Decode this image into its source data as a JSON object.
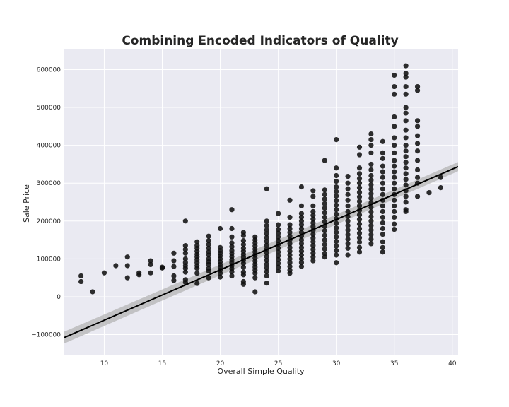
{
  "chart_data": {
    "type": "scatter",
    "title": "Combining Encoded Indicators of Quality",
    "xlabel": "Overall Simple Quality",
    "ylabel": "Sale Price",
    "xlim": [
      6.5,
      40.5
    ],
    "ylim": [
      -155000,
      655000
    ],
    "xticks": [
      10,
      15,
      20,
      25,
      30,
      35,
      40
    ],
    "yticks": [
      -100000,
      0,
      100000,
      200000,
      300000,
      400000,
      500000,
      600000
    ],
    "grid": true,
    "background": "#eaeaf2",
    "grid_color": "#ffffff",
    "point_color": "#111111",
    "line_color": "#000000",
    "ci_color": "#b0b0b0",
    "regression": {
      "intercept": -195000,
      "slope": 13300,
      "ci": 12000
    },
    "points": [
      [
        8,
        55000
      ],
      [
        8,
        40000
      ],
      [
        9,
        13000
      ],
      [
        10,
        63000
      ],
      [
        11,
        82000
      ],
      [
        12,
        105000
      ],
      [
        12,
        82000
      ],
      [
        12,
        50000
      ],
      [
        13,
        63000
      ],
      [
        13,
        58000
      ],
      [
        14,
        95000
      ],
      [
        14,
        85000
      ],
      [
        14,
        63000
      ],
      [
        15,
        78000
      ],
      [
        15,
        76000
      ],
      [
        16,
        115000
      ],
      [
        16,
        95000
      ],
      [
        16,
        80000
      ],
      [
        16,
        55000
      ],
      [
        16,
        43000
      ],
      [
        17,
        200000
      ],
      [
        17,
        135000
      ],
      [
        17,
        125000
      ],
      [
        17,
        115000
      ],
      [
        17,
        100000
      ],
      [
        17,
        90000
      ],
      [
        17,
        82000
      ],
      [
        17,
        75000
      ],
      [
        17,
        65000
      ],
      [
        17,
        45000
      ],
      [
        17,
        38000
      ],
      [
        18,
        145000
      ],
      [
        18,
        135000
      ],
      [
        18,
        128000
      ],
      [
        18,
        120000
      ],
      [
        18,
        112000
      ],
      [
        18,
        105000
      ],
      [
        18,
        98000
      ],
      [
        18,
        90000
      ],
      [
        18,
        82000
      ],
      [
        18,
        75000
      ],
      [
        18,
        62000
      ],
      [
        18,
        35000
      ],
      [
        19,
        160000
      ],
      [
        19,
        148000
      ],
      [
        19,
        138000
      ],
      [
        19,
        128000
      ],
      [
        19,
        118000
      ],
      [
        19,
        110000
      ],
      [
        19,
        100000
      ],
      [
        19,
        92000
      ],
      [
        19,
        85000
      ],
      [
        19,
        75000
      ],
      [
        19,
        68000
      ],
      [
        19,
        50000
      ],
      [
        20,
        180000
      ],
      [
        20,
        130000
      ],
      [
        20,
        122000
      ],
      [
        20,
        115000
      ],
      [
        20,
        108000
      ],
      [
        20,
        100000
      ],
      [
        20,
        92000
      ],
      [
        20,
        85000
      ],
      [
        20,
        78000
      ],
      [
        20,
        70000
      ],
      [
        20,
        62000
      ],
      [
        20,
        52000
      ],
      [
        21,
        230000
      ],
      [
        21,
        180000
      ],
      [
        21,
        158000
      ],
      [
        21,
        142000
      ],
      [
        21,
        132000
      ],
      [
        21,
        122000
      ],
      [
        21,
        114000
      ],
      [
        21,
        106000
      ],
      [
        21,
        98000
      ],
      [
        21,
        90000
      ],
      [
        21,
        82000
      ],
      [
        21,
        74000
      ],
      [
        21,
        66000
      ],
      [
        21,
        55000
      ],
      [
        22,
        170000
      ],
      [
        22,
        162000
      ],
      [
        22,
        148000
      ],
      [
        22,
        138000
      ],
      [
        22,
        128000
      ],
      [
        22,
        120000
      ],
      [
        22,
        112000
      ],
      [
        22,
        104000
      ],
      [
        22,
        96000
      ],
      [
        22,
        88000
      ],
      [
        22,
        78000
      ],
      [
        22,
        65000
      ],
      [
        22,
        58000
      ],
      [
        22,
        40000
      ],
      [
        22,
        33000
      ],
      [
        23,
        158000
      ],
      [
        23,
        150000
      ],
      [
        23,
        142000
      ],
      [
        23,
        134000
      ],
      [
        23,
        126000
      ],
      [
        23,
        118000
      ],
      [
        23,
        110000
      ],
      [
        23,
        102000
      ],
      [
        23,
        94000
      ],
      [
        23,
        86000
      ],
      [
        23,
        78000
      ],
      [
        23,
        70000
      ],
      [
        23,
        62000
      ],
      [
        23,
        50000
      ],
      [
        23,
        13000
      ],
      [
        24,
        285000
      ],
      [
        24,
        200000
      ],
      [
        24,
        188000
      ],
      [
        24,
        176000
      ],
      [
        24,
        166000
      ],
      [
        24,
        156000
      ],
      [
        24,
        146000
      ],
      [
        24,
        136000
      ],
      [
        24,
        126000
      ],
      [
        24,
        116000
      ],
      [
        24,
        106000
      ],
      [
        24,
        96000
      ],
      [
        24,
        86000
      ],
      [
        24,
        76000
      ],
      [
        24,
        66000
      ],
      [
        24,
        55000
      ],
      [
        24,
        36000
      ],
      [
        25,
        220000
      ],
      [
        25,
        190000
      ],
      [
        25,
        178000
      ],
      [
        25,
        168000
      ],
      [
        25,
        158000
      ],
      [
        25,
        148000
      ],
      [
        25,
        138000
      ],
      [
        25,
        128000
      ],
      [
        25,
        118000
      ],
      [
        25,
        108000
      ],
      [
        25,
        98000
      ],
      [
        25,
        88000
      ],
      [
        25,
        78000
      ],
      [
        25,
        68000
      ],
      [
        26,
        255000
      ],
      [
        26,
        210000
      ],
      [
        26,
        190000
      ],
      [
        26,
        180000
      ],
      [
        26,
        170000
      ],
      [
        26,
        160000
      ],
      [
        26,
        150000
      ],
      [
        26,
        140000
      ],
      [
        26,
        130000
      ],
      [
        26,
        120000
      ],
      [
        26,
        110000
      ],
      [
        26,
        100000
      ],
      [
        26,
        90000
      ],
      [
        26,
        80000
      ],
      [
        26,
        70000
      ],
      [
        26,
        62000
      ],
      [
        27,
        290000
      ],
      [
        27,
        240000
      ],
      [
        27,
        220000
      ],
      [
        27,
        210000
      ],
      [
        27,
        200000
      ],
      [
        27,
        190000
      ],
      [
        27,
        180000
      ],
      [
        27,
        170000
      ],
      [
        27,
        160000
      ],
      [
        27,
        150000
      ],
      [
        27,
        140000
      ],
      [
        27,
        130000
      ],
      [
        27,
        120000
      ],
      [
        27,
        110000
      ],
      [
        27,
        100000
      ],
      [
        27,
        90000
      ],
      [
        27,
        80000
      ],
      [
        28,
        280000
      ],
      [
        28,
        265000
      ],
      [
        28,
        240000
      ],
      [
        28,
        225000
      ],
      [
        28,
        215000
      ],
      [
        28,
        205000
      ],
      [
        28,
        195000
      ],
      [
        28,
        185000
      ],
      [
        28,
        175000
      ],
      [
        28,
        165000
      ],
      [
        28,
        155000
      ],
      [
        28,
        145000
      ],
      [
        28,
        135000
      ],
      [
        28,
        125000
      ],
      [
        28,
        115000
      ],
      [
        28,
        105000
      ],
      [
        28,
        95000
      ],
      [
        29,
        360000
      ],
      [
        29,
        282000
      ],
      [
        29,
        270000
      ],
      [
        29,
        258000
      ],
      [
        29,
        246000
      ],
      [
        29,
        234000
      ],
      [
        29,
        222000
      ],
      [
        29,
        210000
      ],
      [
        29,
        198000
      ],
      [
        29,
        186000
      ],
      [
        29,
        174000
      ],
      [
        29,
        162000
      ],
      [
        29,
        150000
      ],
      [
        29,
        138000
      ],
      [
        29,
        126000
      ],
      [
        29,
        114000
      ],
      [
        29,
        105000
      ],
      [
        30,
        415000
      ],
      [
        30,
        340000
      ],
      [
        30,
        320000
      ],
      [
        30,
        305000
      ],
      [
        30,
        290000
      ],
      [
        30,
        278000
      ],
      [
        30,
        266000
      ],
      [
        30,
        254000
      ],
      [
        30,
        242000
      ],
      [
        30,
        230000
      ],
      [
        30,
        218000
      ],
      [
        30,
        206000
      ],
      [
        30,
        194000
      ],
      [
        30,
        182000
      ],
      [
        30,
        170000
      ],
      [
        30,
        158000
      ],
      [
        30,
        146000
      ],
      [
        30,
        134000
      ],
      [
        30,
        122000
      ],
      [
        30,
        110000
      ],
      [
        30,
        90000
      ],
      [
        31,
        318000
      ],
      [
        31,
        300000
      ],
      [
        31,
        285000
      ],
      [
        31,
        270000
      ],
      [
        31,
        255000
      ],
      [
        31,
        240000
      ],
      [
        31,
        225000
      ],
      [
        31,
        212000
      ],
      [
        31,
        200000
      ],
      [
        31,
        188000
      ],
      [
        31,
        176000
      ],
      [
        31,
        164000
      ],
      [
        31,
        152000
      ],
      [
        31,
        140000
      ],
      [
        31,
        128000
      ],
      [
        31,
        110000
      ],
      [
        32,
        395000
      ],
      [
        32,
        375000
      ],
      [
        32,
        340000
      ],
      [
        32,
        325000
      ],
      [
        32,
        312000
      ],
      [
        32,
        300000
      ],
      [
        32,
        288000
      ],
      [
        32,
        276000
      ],
      [
        32,
        264000
      ],
      [
        32,
        252000
      ],
      [
        32,
        240000
      ],
      [
        32,
        228000
      ],
      [
        32,
        216000
      ],
      [
        32,
        204000
      ],
      [
        32,
        192000
      ],
      [
        32,
        180000
      ],
      [
        32,
        168000
      ],
      [
        32,
        156000
      ],
      [
        32,
        144000
      ],
      [
        32,
        130000
      ],
      [
        32,
        118000
      ],
      [
        33,
        430000
      ],
      [
        33,
        415000
      ],
      [
        33,
        400000
      ],
      [
        33,
        380000
      ],
      [
        33,
        350000
      ],
      [
        33,
        335000
      ],
      [
        33,
        320000
      ],
      [
        33,
        308000
      ],
      [
        33,
        296000
      ],
      [
        33,
        284000
      ],
      [
        33,
        272000
      ],
      [
        33,
        260000
      ],
      [
        33,
        248000
      ],
      [
        33,
        236000
      ],
      [
        33,
        224000
      ],
      [
        33,
        212000
      ],
      [
        33,
        200000
      ],
      [
        33,
        188000
      ],
      [
        33,
        176000
      ],
      [
        33,
        164000
      ],
      [
        33,
        152000
      ],
      [
        33,
        140000
      ],
      [
        34,
        410000
      ],
      [
        34,
        380000
      ],
      [
        34,
        365000
      ],
      [
        34,
        345000
      ],
      [
        34,
        330000
      ],
      [
        34,
        315000
      ],
      [
        34,
        300000
      ],
      [
        34,
        285000
      ],
      [
        34,
        270000
      ],
      [
        34,
        255000
      ],
      [
        34,
        240000
      ],
      [
        34,
        225000
      ],
      [
        34,
        210000
      ],
      [
        34,
        195000
      ],
      [
        34,
        180000
      ],
      [
        34,
        165000
      ],
      [
        34,
        145000
      ],
      [
        34,
        130000
      ],
      [
        34,
        118000
      ],
      [
        35,
        585000
      ],
      [
        35,
        555000
      ],
      [
        35,
        535000
      ],
      [
        35,
        475000
      ],
      [
        35,
        450000
      ],
      [
        35,
        420000
      ],
      [
        35,
        400000
      ],
      [
        35,
        380000
      ],
      [
        35,
        360000
      ],
      [
        35,
        345000
      ],
      [
        35,
        330000
      ],
      [
        35,
        315000
      ],
      [
        35,
        300000
      ],
      [
        35,
        285000
      ],
      [
        35,
        270000
      ],
      [
        35,
        255000
      ],
      [
        35,
        240000
      ],
      [
        35,
        225000
      ],
      [
        35,
        210000
      ],
      [
        35,
        192000
      ],
      [
        35,
        178000
      ],
      [
        36,
        610000
      ],
      [
        36,
        590000
      ],
      [
        36,
        580000
      ],
      [
        36,
        555000
      ],
      [
        36,
        535000
      ],
      [
        36,
        500000
      ],
      [
        36,
        485000
      ],
      [
        36,
        465000
      ],
      [
        36,
        440000
      ],
      [
        36,
        420000
      ],
      [
        36,
        400000
      ],
      [
        36,
        385000
      ],
      [
        36,
        370000
      ],
      [
        36,
        355000
      ],
      [
        36,
        340000
      ],
      [
        36,
        325000
      ],
      [
        36,
        310000
      ],
      [
        36,
        295000
      ],
      [
        36,
        280000
      ],
      [
        36,
        265000
      ],
      [
        36,
        250000
      ],
      [
        36,
        230000
      ],
      [
        36,
        225000
      ],
      [
        37,
        555000
      ],
      [
        37,
        545000
      ],
      [
        37,
        465000
      ],
      [
        37,
        450000
      ],
      [
        37,
        425000
      ],
      [
        37,
        405000
      ],
      [
        37,
        385000
      ],
      [
        37,
        360000
      ],
      [
        37,
        335000
      ],
      [
        37,
        315000
      ],
      [
        37,
        300000
      ],
      [
        37,
        265000
      ],
      [
        38,
        275000
      ],
      [
        39,
        315000
      ],
      [
        39,
        288000
      ]
    ]
  }
}
